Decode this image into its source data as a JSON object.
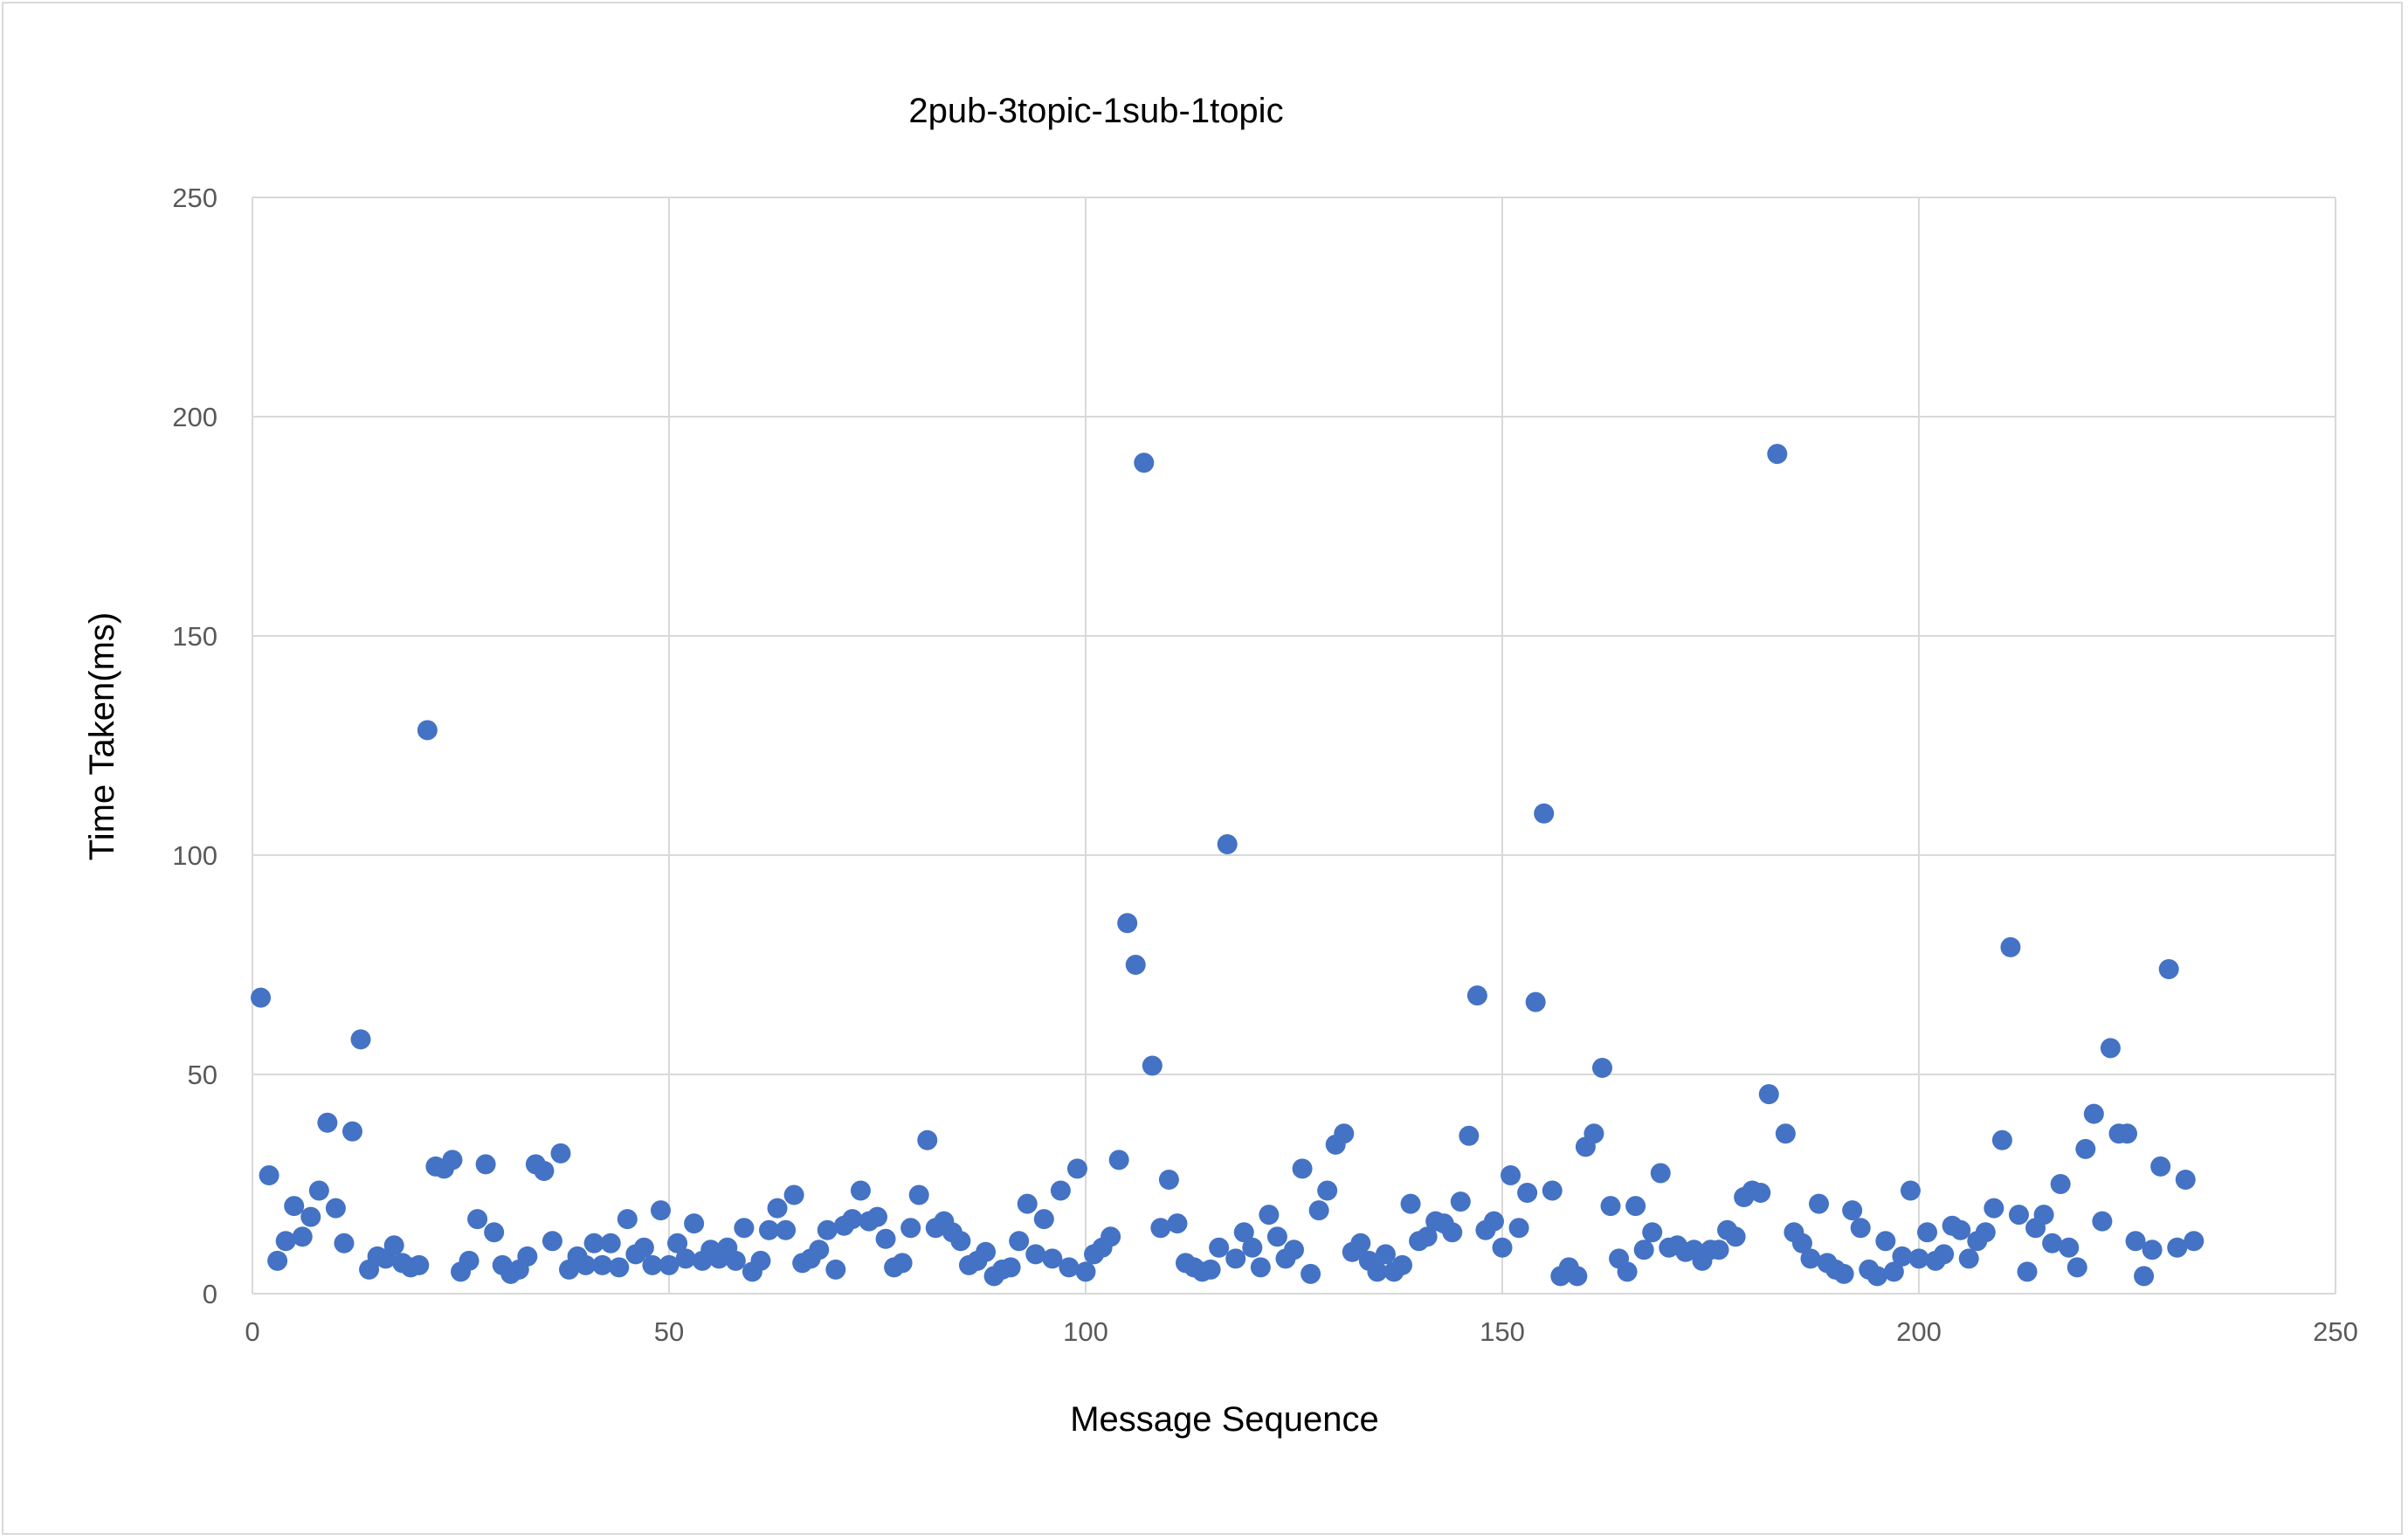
{
  "chart_data": {
    "type": "scatter",
    "title": "2pub-3topic-1sub-1topic",
    "xlabel": "Message Sequence",
    "ylabel": "Time Taken(ms)",
    "xlim": [
      0,
      250
    ],
    "ylim": [
      0,
      250
    ],
    "x_ticks": [
      "0",
      "50",
      "100",
      "150",
      "200",
      "250"
    ],
    "y_ticks": [
      "0",
      "50",
      "100",
      "150",
      "200",
      "250"
    ],
    "grid": true,
    "legend": "none",
    "marker_color": "#4472c4",
    "series": [
      {
        "values": [
          [
            1,
            67.5
          ],
          [
            2,
            27
          ],
          [
            3,
            7.5
          ],
          [
            4,
            12
          ],
          [
            5,
            20
          ],
          [
            6,
            13
          ],
          [
            7,
            17.5
          ],
          [
            8,
            23.5
          ],
          [
            9,
            39
          ],
          [
            10,
            19.5
          ],
          [
            11,
            11.5
          ],
          [
            12,
            37
          ],
          [
            13,
            58
          ],
          [
            14,
            5.5
          ],
          [
            15,
            8.5
          ],
          [
            16,
            8
          ],
          [
            17,
            11
          ],
          [
            18,
            7
          ],
          [
            19,
            6
          ],
          [
            20,
            6.5
          ],
          [
            21,
            128.5
          ],
          [
            22,
            29
          ],
          [
            23,
            28.5
          ],
          [
            24,
            30.5
          ],
          [
            25,
            5
          ],
          [
            26,
            7.5
          ],
          [
            27,
            17
          ],
          [
            28,
            29.5
          ],
          [
            29,
            14
          ],
          [
            30,
            6.5
          ],
          [
            31,
            4.5
          ],
          [
            32,
            5.5
          ],
          [
            33,
            8.5
          ],
          [
            34,
            29.5
          ],
          [
            35,
            28
          ],
          [
            36,
            12
          ],
          [
            37,
            32
          ],
          [
            38,
            5.5
          ],
          [
            39,
            8.5
          ],
          [
            40,
            6.5
          ],
          [
            41,
            11.5
          ],
          [
            42,
            6.5
          ],
          [
            43,
            11.5
          ],
          [
            44,
            6
          ],
          [
            45,
            17
          ],
          [
            46,
            9
          ],
          [
            47,
            10.5
          ],
          [
            48,
            6.5
          ],
          [
            49,
            19
          ],
          [
            50,
            6.5
          ],
          [
            51,
            11.5
          ],
          [
            52,
            8
          ],
          [
            53,
            16
          ],
          [
            54,
            7.5
          ],
          [
            55,
            10
          ],
          [
            56,
            8
          ],
          [
            57,
            10.5
          ],
          [
            58,
            7.5
          ],
          [
            59,
            15
          ],
          [
            60,
            5
          ],
          [
            61,
            7.5
          ],
          [
            62,
            14.5
          ],
          [
            63,
            19.5
          ],
          [
            64,
            14.5
          ],
          [
            65,
            22.5
          ],
          [
            66,
            7
          ],
          [
            67,
            8
          ],
          [
            68,
            10
          ],
          [
            69,
            14.5
          ],
          [
            70,
            5.5
          ],
          [
            71,
            15.5
          ],
          [
            72,
            17
          ],
          [
            73,
            23.5
          ],
          [
            74,
            16.5
          ],
          [
            75,
            17.5
          ],
          [
            76,
            12.5
          ],
          [
            77,
            6
          ],
          [
            78,
            7
          ],
          [
            79,
            15
          ],
          [
            80,
            22.5
          ],
          [
            81,
            35
          ],
          [
            82,
            15
          ],
          [
            83,
            16.5
          ],
          [
            84,
            14
          ],
          [
            85,
            12
          ],
          [
            86,
            6.5
          ],
          [
            87,
            7.5
          ],
          [
            88,
            9.5
          ],
          [
            89,
            4
          ],
          [
            90,
            5.5
          ],
          [
            91,
            6
          ],
          [
            92,
            12
          ],
          [
            93,
            20.5
          ],
          [
            94,
            9
          ],
          [
            95,
            17
          ],
          [
            96,
            8
          ],
          [
            97,
            23.5
          ],
          [
            98,
            6
          ],
          [
            99,
            28.5
          ],
          [
            100,
            5
          ],
          [
            101,
            9
          ],
          [
            102,
            10.5
          ],
          [
            103,
            13
          ],
          [
            104,
            30.5
          ],
          [
            105,
            84.5
          ],
          [
            106,
            75
          ],
          [
            107,
            189.5
          ],
          [
            108,
            52
          ],
          [
            109,
            15
          ],
          [
            110,
            26
          ],
          [
            111,
            16
          ],
          [
            112,
            7
          ],
          [
            113,
            6
          ],
          [
            114,
            5
          ],
          [
            115,
            5.5
          ],
          [
            116,
            10.5
          ],
          [
            117,
            102.5
          ],
          [
            118,
            8
          ],
          [
            119,
            14
          ],
          [
            120,
            10.5
          ],
          [
            121,
            6
          ],
          [
            122,
            18
          ],
          [
            123,
            13
          ],
          [
            124,
            8
          ],
          [
            125,
            10
          ],
          [
            126,
            28.5
          ],
          [
            127,
            4.5
          ],
          [
            128,
            19
          ],
          [
            129,
            23.5
          ],
          [
            130,
            34
          ],
          [
            131,
            36.5
          ],
          [
            132,
            9.5
          ],
          [
            133,
            11.5
          ],
          [
            134,
            7.5
          ],
          [
            135,
            5
          ],
          [
            136,
            9
          ],
          [
            137,
            5
          ],
          [
            138,
            6.5
          ],
          [
            139,
            20.5
          ],
          [
            140,
            12
          ],
          [
            141,
            13
          ],
          [
            142,
            16.5
          ],
          [
            143,
            16
          ],
          [
            144,
            14
          ],
          [
            145,
            21
          ],
          [
            146,
            36
          ],
          [
            147,
            68
          ],
          [
            148,
            14.5
          ],
          [
            149,
            16.5
          ],
          [
            150,
            10.5
          ],
          [
            151,
            27
          ],
          [
            152,
            15
          ],
          [
            153,
            23
          ],
          [
            154,
            66.5
          ],
          [
            155,
            109.5
          ],
          [
            156,
            23.5
          ],
          [
            157,
            4
          ],
          [
            158,
            6
          ],
          [
            159,
            4
          ],
          [
            160,
            33.5
          ],
          [
            161,
            36.5
          ],
          [
            162,
            51.5
          ],
          [
            163,
            20
          ],
          [
            164,
            8
          ],
          [
            165,
            5
          ],
          [
            166,
            20
          ],
          [
            167,
            10
          ],
          [
            168,
            14
          ],
          [
            169,
            27.5
          ],
          [
            170,
            10.5
          ],
          [
            171,
            11
          ],
          [
            172,
            9.5
          ],
          [
            173,
            10
          ],
          [
            174,
            7.5
          ],
          [
            175,
            10
          ],
          [
            176,
            10
          ],
          [
            177,
            14.5
          ],
          [
            178,
            13
          ],
          [
            179,
            22
          ],
          [
            180,
            23.5
          ],
          [
            181,
            23
          ],
          [
            182,
            45.5
          ],
          [
            183,
            191.5
          ],
          [
            184,
            36.5
          ],
          [
            185,
            14
          ],
          [
            186,
            11.5
          ],
          [
            187,
            8
          ],
          [
            188,
            20.5
          ],
          [
            189,
            7
          ],
          [
            190,
            5.5
          ],
          [
            191,
            4.5
          ],
          [
            192,
            19
          ],
          [
            193,
            15
          ],
          [
            194,
            5.5
          ],
          [
            195,
            4
          ],
          [
            196,
            12
          ],
          [
            197,
            5
          ],
          [
            198,
            8.5
          ],
          [
            199,
            23.5
          ],
          [
            200,
            8
          ],
          [
            201,
            14
          ],
          [
            202,
            7.5
          ],
          [
            203,
            9
          ],
          [
            204,
            15.5
          ],
          [
            205,
            14.5
          ],
          [
            206,
            8
          ],
          [
            207,
            12
          ],
          [
            208,
            14
          ],
          [
            209,
            19.5
          ],
          [
            210,
            35
          ],
          [
            211,
            79
          ],
          [
            212,
            18
          ],
          [
            213,
            5
          ],
          [
            214,
            15
          ],
          [
            215,
            18
          ],
          [
            216,
            11.5
          ],
          [
            217,
            25
          ],
          [
            218,
            10.5
          ],
          [
            219,
            6
          ],
          [
            220,
            33
          ],
          [
            221,
            41
          ],
          [
            222,
            16.5
          ],
          [
            223,
            56
          ],
          [
            224,
            36.5
          ],
          [
            225,
            36.5
          ],
          [
            226,
            12
          ],
          [
            227,
            4
          ],
          [
            228,
            10
          ],
          [
            229,
            29
          ],
          [
            230,
            74
          ],
          [
            231,
            10.5
          ],
          [
            232,
            26
          ],
          [
            233,
            12
          ]
        ]
      }
    ]
  }
}
